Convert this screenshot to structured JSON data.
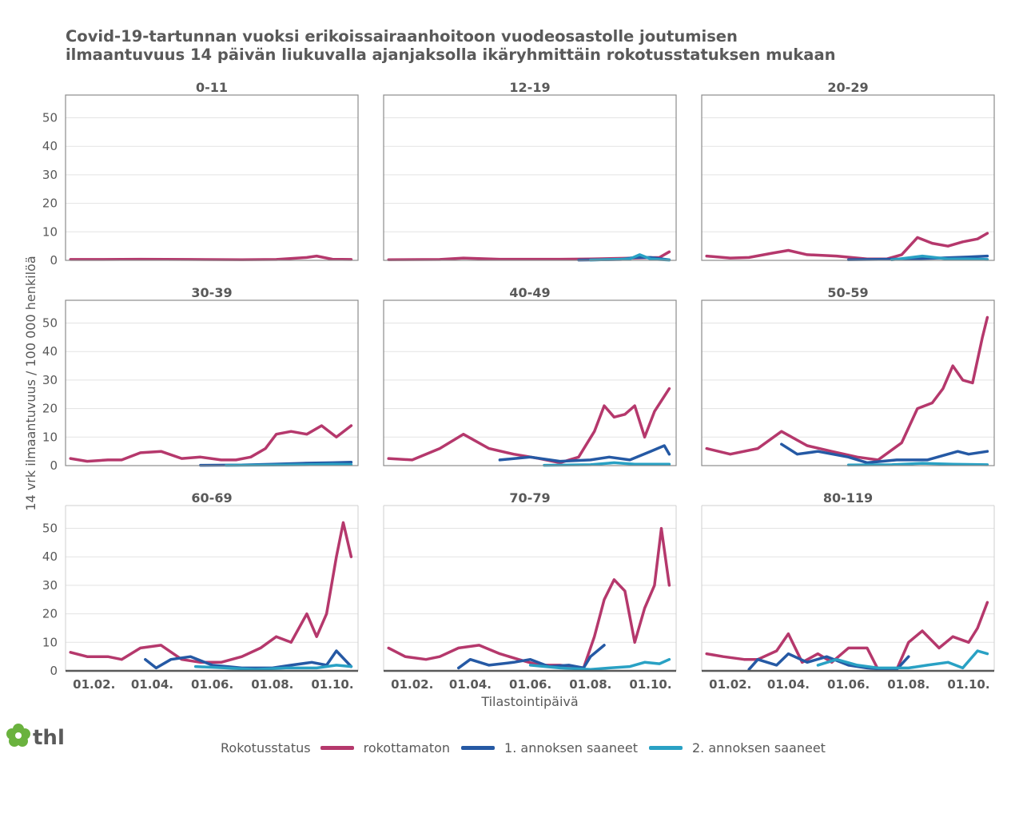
{
  "title": {
    "line1": "Covid-19-tartunnan vuoksi erikoissairaanhoitoon vuodeosastolle joutumisen",
    "line2": "ilmaantuvuus 14 päivän liukuvalla ajanjaksolla ikäryhmittäin rokotusstatuksen mukaan"
  },
  "logo": {
    "text": "thl",
    "icon": "clover-icon",
    "color": "#6ab23e"
  },
  "legend": {
    "title": "Rokotusstatus",
    "items": [
      {
        "label": "rokottamaton",
        "color": "#b5386c"
      },
      {
        "label": "1. annoksen saaneet",
        "color": "#2559a4"
      },
      {
        "label": "2. annoksen saaneet",
        "color": "#29a1c4"
      }
    ]
  },
  "chart_data": {
    "type": "line",
    "layout": "facet-grid-3x3",
    "ylabel": "14 vrk ilmaantuvuus / 100 000 henkilöä",
    "xlabel": "Tilastointipäivä",
    "ylim": [
      0,
      58
    ],
    "yticks": [
      0,
      10,
      20,
      30,
      40,
      50
    ],
    "xlim": [
      "2021-01-03",
      "2021-10-27"
    ],
    "xticks": [
      "2021-02-01",
      "2021-04-01",
      "2021-06-01",
      "2021-08-01",
      "2021-10-01"
    ],
    "xtick_labels": [
      "01.02.",
      "01.04.",
      "01.06.",
      "01.08.",
      "01.10."
    ],
    "grid": true,
    "legend_position": "bottom",
    "panels": [
      {
        "name": "0-11",
        "series": [
          {
            "name": "rokottamaton",
            "x": [
              "2021-01-08",
              "2021-02-10",
              "2021-03-20",
              "2021-05-10",
              "2021-07-01",
              "2021-08-05",
              "2021-09-05",
              "2021-09-15",
              "2021-10-01",
              "2021-10-20"
            ],
            "y": [
              0.3,
              0.3,
              0.4,
              0.3,
              0.2,
              0.3,
              1.0,
              1.5,
              0.4,
              0.3
            ]
          }
        ]
      },
      {
        "name": "12-19",
        "series": [
          {
            "name": "rokottamaton",
            "x": [
              "2021-01-08",
              "2021-03-01",
              "2021-03-25",
              "2021-05-01",
              "2021-07-01",
              "2021-08-01",
              "2021-09-15",
              "2021-10-10",
              "2021-10-20"
            ],
            "y": [
              0.2,
              0.3,
              0.8,
              0.4,
              0.4,
              0.5,
              0.8,
              1.0,
              3.0
            ]
          },
          {
            "name": "1. annoksen saaneet",
            "x": [
              "2021-07-20",
              "2021-09-01",
              "2021-09-15",
              "2021-10-01",
              "2021-10-20"
            ],
            "y": [
              0.1,
              0.3,
              1.0,
              1.0,
              0.2
            ]
          },
          {
            "name": "2. annoksen saaneet",
            "x": [
              "2021-08-01",
              "2021-09-10",
              "2021-09-20",
              "2021-10-01",
              "2021-10-20"
            ],
            "y": [
              0.1,
              0.5,
              2.0,
              0.5,
              0.1
            ]
          }
        ]
      },
      {
        "name": "20-29",
        "series": [
          {
            "name": "rokottamaton",
            "x": [
              "2021-01-08",
              "2021-02-01",
              "2021-02-20",
              "2021-03-15",
              "2021-04-01",
              "2021-04-20",
              "2021-05-20",
              "2021-06-20",
              "2021-07-10",
              "2021-07-25",
              "2021-08-10",
              "2021-08-25",
              "2021-09-10",
              "2021-09-25",
              "2021-10-10",
              "2021-10-20"
            ],
            "y": [
              1.5,
              0.8,
              1.0,
              2.5,
              3.5,
              2.0,
              1.5,
              0.5,
              0.5,
              2.0,
              8.0,
              6.0,
              5.0,
              6.5,
              7.5,
              9.5
            ]
          },
          {
            "name": "1. annoksen saaneet",
            "x": [
              "2021-06-01",
              "2021-08-01",
              "2021-09-01",
              "2021-10-01",
              "2021-10-20"
            ],
            "y": [
              0.2,
              0.5,
              0.8,
              1.2,
              1.5
            ]
          },
          {
            "name": "2. annoksen saaneet",
            "x": [
              "2021-07-15",
              "2021-08-15",
              "2021-09-10",
              "2021-10-01",
              "2021-10-20"
            ],
            "y": [
              0.2,
              1.5,
              0.5,
              0.5,
              0.3
            ]
          }
        ]
      },
      {
        "name": "30-39",
        "series": [
          {
            "name": "rokottamaton",
            "x": [
              "2021-01-08",
              "2021-01-25",
              "2021-02-15",
              "2021-03-01",
              "2021-03-20",
              "2021-04-10",
              "2021-05-01",
              "2021-05-20",
              "2021-06-10",
              "2021-06-25",
              "2021-07-10",
              "2021-07-25",
              "2021-08-05",
              "2021-08-20",
              "2021-09-05",
              "2021-09-20",
              "2021-10-05",
              "2021-10-20"
            ],
            "y": [
              2.5,
              1.5,
              2.0,
              2.0,
              4.5,
              5.0,
              2.5,
              3.0,
              2.0,
              2.0,
              3.0,
              6.0,
              11.0,
              12.0,
              11.0,
              14.0,
              10.0,
              14.0
            ]
          },
          {
            "name": "1. annoksen saaneet",
            "x": [
              "2021-05-20",
              "2021-07-01",
              "2021-08-01",
              "2021-09-01",
              "2021-10-01",
              "2021-10-20"
            ],
            "y": [
              0.1,
              0.2,
              0.5,
              0.8,
              1.0,
              1.2
            ]
          },
          {
            "name": "2. annoksen saaneet",
            "x": [
              "2021-06-15",
              "2021-08-01",
              "2021-09-01",
              "2021-10-01",
              "2021-10-20"
            ],
            "y": [
              0.1,
              0.2,
              0.3,
              0.5,
              0.4
            ]
          }
        ]
      },
      {
        "name": "40-49",
        "series": [
          {
            "name": "rokottamaton",
            "x": [
              "2021-01-08",
              "2021-02-01",
              "2021-03-01",
              "2021-03-25",
              "2021-04-20",
              "2021-05-15",
              "2021-06-10",
              "2021-07-01",
              "2021-07-20",
              "2021-08-05",
              "2021-08-15",
              "2021-08-25",
              "2021-09-05",
              "2021-09-15",
              "2021-09-25",
              "2021-10-05",
              "2021-10-20"
            ],
            "y": [
              2.5,
              2.0,
              6.0,
              11.0,
              6.0,
              4.0,
              2.5,
              1.0,
              3.0,
              12.0,
              21.0,
              17.0,
              18.0,
              21.0,
              10.0,
              19.0,
              27.0
            ]
          },
          {
            "name": "1. annoksen saaneet",
            "x": [
              "2021-05-01",
              "2021-06-01",
              "2021-07-01",
              "2021-08-01",
              "2021-08-20",
              "2021-09-10",
              "2021-10-01",
              "2021-10-15",
              "2021-10-20"
            ],
            "y": [
              2.0,
              3.0,
              1.5,
              2.0,
              3.0,
              2.0,
              5.0,
              7.0,
              4.0
            ]
          },
          {
            "name": "2. annoksen saaneet",
            "x": [
              "2021-06-15",
              "2021-08-01",
              "2021-08-25",
              "2021-09-15",
              "2021-10-20"
            ],
            "y": [
              0.1,
              0.3,
              1.0,
              0.5,
              0.5
            ]
          }
        ]
      },
      {
        "name": "50-59",
        "series": [
          {
            "name": "rokottamaton",
            "x": [
              "2021-01-08",
              "2021-02-01",
              "2021-03-01",
              "2021-03-25",
              "2021-04-20",
              "2021-05-15",
              "2021-06-10",
              "2021-07-01",
              "2021-07-25",
              "2021-08-10",
              "2021-08-25",
              "2021-09-05",
              "2021-09-15",
              "2021-09-25",
              "2021-10-05",
              "2021-10-15",
              "2021-10-20"
            ],
            "y": [
              6.0,
              4.0,
              6.0,
              12.0,
              7.0,
              5.0,
              3.0,
              2.0,
              8.0,
              20.0,
              22.0,
              27.0,
              35.0,
              30.0,
              29.0,
              45.0,
              52.0
            ]
          },
          {
            "name": "1. annoksen saaneet",
            "x": [
              "2021-03-25",
              "2021-04-10",
              "2021-05-01",
              "2021-06-01",
              "2021-06-20",
              "2021-07-20",
              "2021-08-20",
              "2021-09-20",
              "2021-10-01",
              "2021-10-20"
            ],
            "y": [
              7.5,
              4.0,
              5.0,
              3.0,
              1.0,
              2.0,
              2.0,
              5.0,
              4.0,
              5.0
            ]
          },
          {
            "name": "2. annoksen saaneet",
            "x": [
              "2021-06-01",
              "2021-07-15",
              "2021-08-15",
              "2021-09-15",
              "2021-10-20"
            ],
            "y": [
              0.2,
              0.3,
              0.8,
              0.5,
              0.3
            ]
          }
        ]
      },
      {
        "name": "60-69",
        "series": [
          {
            "name": "rokottamaton",
            "x": [
              "2021-01-08",
              "2021-01-25",
              "2021-02-15",
              "2021-03-01",
              "2021-03-20",
              "2021-04-10",
              "2021-05-01",
              "2021-05-20",
              "2021-06-10",
              "2021-07-01",
              "2021-07-20",
              "2021-08-05",
              "2021-08-20",
              "2021-09-05",
              "2021-09-15",
              "2021-09-25",
              "2021-10-05",
              "2021-10-12",
              "2021-10-20"
            ],
            "y": [
              6.5,
              5.0,
              5.0,
              4.0,
              8.0,
              9.0,
              4.0,
              3.0,
              3.0,
              5.0,
              8.0,
              12.0,
              10.0,
              20.0,
              12.0,
              20.0,
              40.0,
              52.0,
              40.0
            ]
          },
          {
            "name": "1. annoksen saaneet",
            "x": [
              "2021-03-25",
              "2021-04-05",
              "2021-04-20",
              "2021-05-10",
              "2021-06-01",
              "2021-07-01",
              "2021-08-01",
              "2021-08-20",
              "2021-09-10",
              "2021-09-25",
              "2021-10-05",
              "2021-10-20"
            ],
            "y": [
              4.0,
              1.0,
              4.0,
              5.0,
              2.0,
              1.0,
              1.0,
              2.0,
              3.0,
              2.0,
              7.0,
              1.5
            ]
          },
          {
            "name": "2. annoksen saaneet",
            "x": [
              "2021-05-15",
              "2021-06-15",
              "2021-07-15",
              "2021-08-15",
              "2021-09-15",
              "2021-10-05",
              "2021-10-20"
            ],
            "y": [
              1.5,
              1.0,
              0.5,
              1.0,
              1.0,
              2.0,
              1.5
            ]
          }
        ]
      },
      {
        "name": "70-79",
        "series": [
          {
            "name": "rokottamaton",
            "x": [
              "2021-01-08",
              "2021-01-25",
              "2021-02-15",
              "2021-03-01",
              "2021-03-20",
              "2021-04-10",
              "2021-05-01",
              "2021-05-20",
              "2021-06-10",
              "2021-07-01",
              "2021-07-25",
              "2021-08-05",
              "2021-08-15",
              "2021-08-25",
              "2021-09-05",
              "2021-09-15",
              "2021-09-25",
              "2021-10-05",
              "2021-10-12",
              "2021-10-20"
            ],
            "y": [
              8.0,
              5.0,
              4.0,
              5.0,
              8.0,
              9.0,
              6.0,
              4.0,
              2.0,
              2.0,
              1.0,
              12.0,
              25.0,
              32.0,
              28.0,
              10.0,
              22.0,
              30.0,
              50.0,
              30.0
            ]
          },
          {
            "name": "1. annoksen saaneet",
            "x": [
              "2021-03-20",
              "2021-04-01",
              "2021-04-20",
              "2021-05-15",
              "2021-06-01",
              "2021-06-20",
              "2021-07-10",
              "2021-07-25",
              "2021-08-01",
              "2021-08-15"
            ],
            "y": [
              1.0,
              4.0,
              2.0,
              3.0,
              4.0,
              1.5,
              2.0,
              1.0,
              5.0,
              9.0
            ]
          },
          {
            "name": "2. annoksen saaneet",
            "x": [
              "2021-06-01",
              "2021-07-01",
              "2021-08-01",
              "2021-08-20",
              "2021-09-10",
              "2021-09-25",
              "2021-10-10",
              "2021-10-20"
            ],
            "y": [
              2.0,
              1.0,
              0.5,
              1.0,
              1.5,
              3.0,
              2.5,
              4.0
            ]
          }
        ]
      },
      {
        "name": "80-119",
        "series": [
          {
            "name": "rokottamaton",
            "x": [
              "2021-01-08",
              "2021-01-25",
              "2021-02-15",
              "2021-03-01",
              "2021-03-20",
              "2021-04-01",
              "2021-04-15",
              "2021-05-01",
              "2021-05-15",
              "2021-06-01",
              "2021-06-20",
              "2021-07-01",
              "2021-07-20",
              "2021-08-01",
              "2021-08-15",
              "2021-09-01",
              "2021-09-15",
              "2021-10-01",
              "2021-10-10",
              "2021-10-20"
            ],
            "y": [
              6.0,
              5.0,
              4.0,
              4.0,
              7.0,
              13.0,
              3.0,
              6.0,
              3.0,
              8.0,
              8.0,
              0.5,
              0.5,
              10.0,
              14.0,
              8.0,
              12.0,
              10.0,
              15.0,
              24.0
            ]
          },
          {
            "name": "1. annoksen saaneet",
            "x": [
              "2021-02-20",
              "2021-03-01",
              "2021-03-20",
              "2021-04-01",
              "2021-04-20",
              "2021-05-10",
              "2021-06-01",
              "2021-06-20",
              "2021-07-10",
              "2021-07-20",
              "2021-08-01"
            ],
            "y": [
              0.5,
              4.0,
              2.0,
              6.0,
              3.0,
              5.0,
              2.0,
              1.0,
              0.5,
              0.5,
              5.0
            ]
          },
          {
            "name": "2. annoksen saaneet",
            "x": [
              "2021-05-01",
              "2021-05-20",
              "2021-06-10",
              "2021-07-01",
              "2021-08-01",
              "2021-08-20",
              "2021-09-10",
              "2021-09-25",
              "2021-10-10",
              "2021-10-20"
            ],
            "y": [
              2.0,
              4.0,
              2.0,
              1.0,
              1.0,
              2.0,
              3.0,
              1.0,
              7.0,
              6.0
            ]
          }
        ]
      }
    ]
  }
}
